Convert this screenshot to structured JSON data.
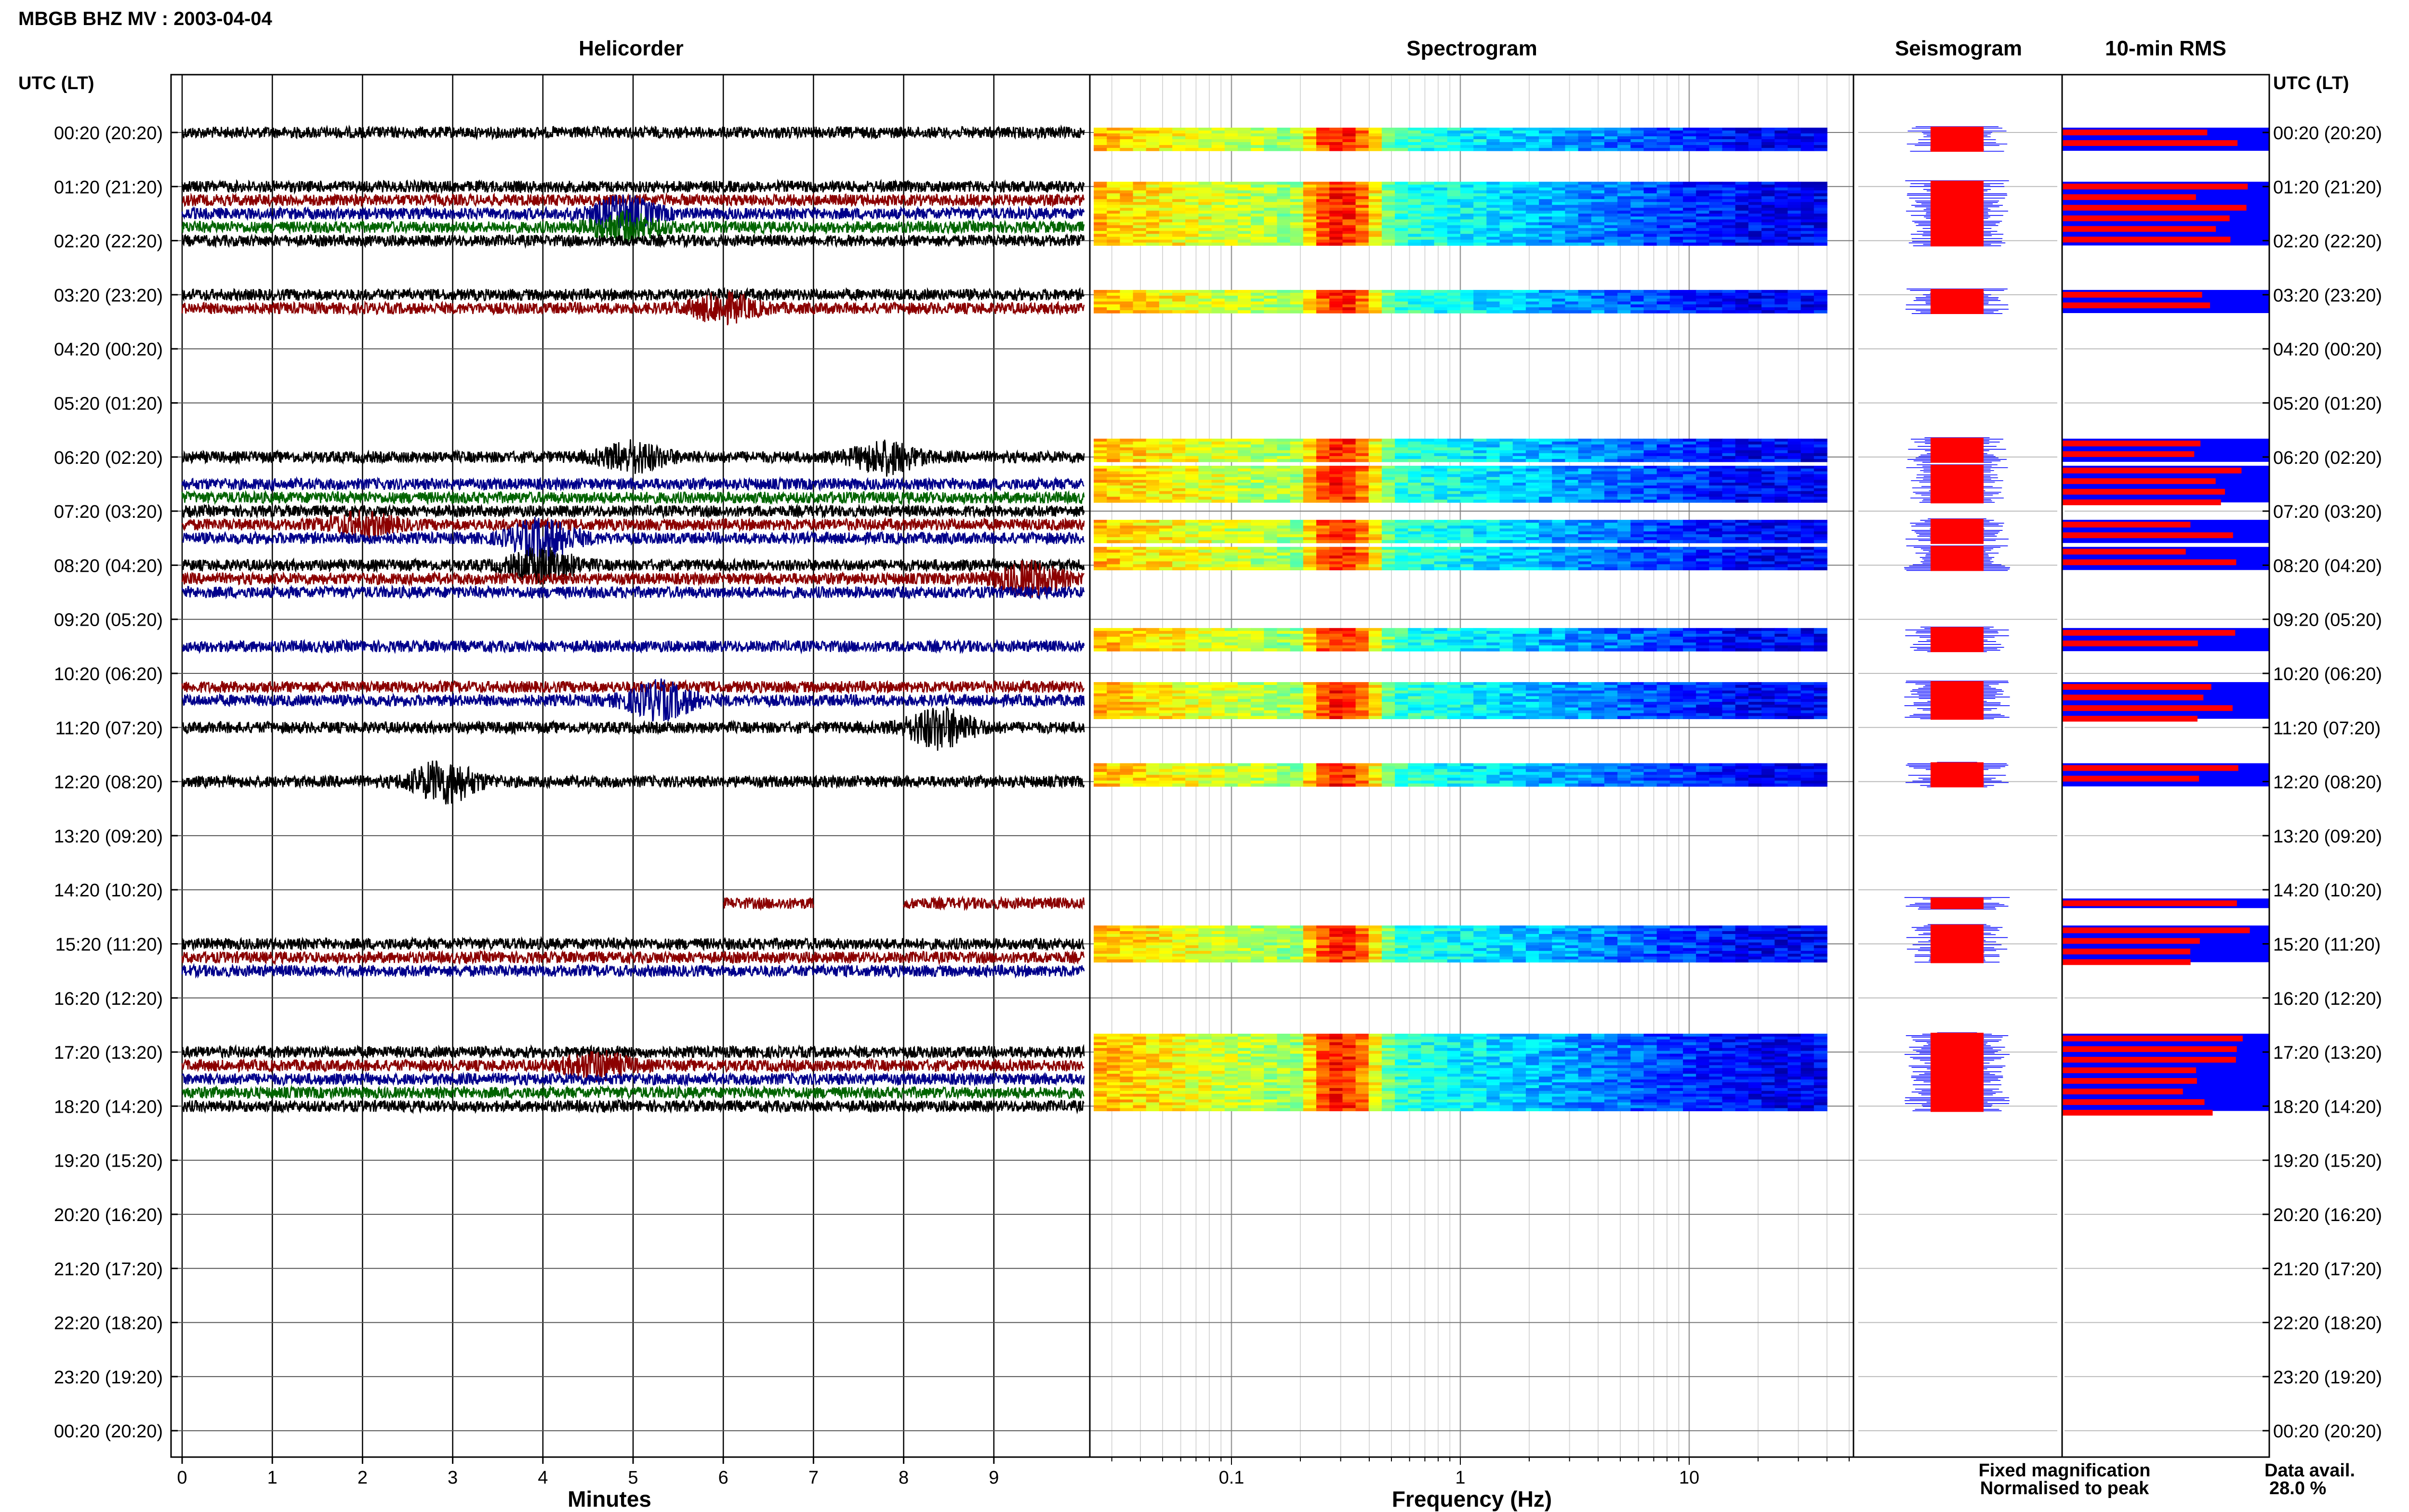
{
  "figure": {
    "title": "MBGB BHZ MV : 2003-04-04",
    "panel_titles": {
      "helicorder": "Helicorder",
      "spectrogram": "Spectrogram",
      "seismogram": "Seismogram",
      "rms": "10-min RMS"
    },
    "left_axis_label": "UTC (LT)",
    "right_axis_label": "UTC (LT)",
    "legend": {
      "fixed": "Fixed magnification",
      "normalised": "Normalised to peak"
    },
    "data_avail_label": "Data avail.",
    "data_avail_value": "28.0 %",
    "colors": {
      "trace_black": "#000000",
      "trace_red": "#8b0000",
      "trace_blue": "#00008b",
      "trace_green": "#006400",
      "fixed_blue": "#0000ff",
      "normalised_red": "#ff0000"
    }
  },
  "chart_data": {
    "type": "line",
    "row_labels": [
      "00:20 (20:20)",
      "01:20 (21:20)",
      "02:20 (22:20)",
      "03:20 (23:20)",
      "04:20 (00:20)",
      "05:20 (01:20)",
      "06:20 (02:20)",
      "07:20 (03:20)",
      "08:20 (04:20)",
      "09:20 (05:20)",
      "10:20 (06:20)",
      "11:20 (07:20)",
      "12:20 (08:20)",
      "13:20 (09:20)",
      "14:20 (10:20)",
      "15:20 (11:20)",
      "16:20 (12:20)",
      "17:20 (13:20)",
      "18:20 (14:20)",
      "19:20 (15:20)",
      "20:20 (16:20)",
      "21:20 (17:20)",
      "22:20 (18:20)",
      "23:20 (19:20)",
      "00:20 (20:20)"
    ],
    "helicorder": {
      "xlabel": "Minutes",
      "xticks": [
        "0",
        "1",
        "2",
        "3",
        "4",
        "5",
        "6",
        "7",
        "8",
        "9"
      ],
      "xlim": [
        0,
        10
      ],
      "trace_hours": [
        0,
        1,
        1.25,
        1.5,
        1.75,
        2,
        3,
        3.25,
        6,
        6.5,
        6.75,
        7,
        7.25,
        7.5,
        8,
        8.25,
        8.5,
        9.5,
        10.25,
        10.5,
        11,
        12,
        14.25,
        15,
        15.25,
        15.5,
        17,
        17.25,
        17.5,
        17.75,
        18
      ],
      "events": [
        {
          "hour": 1.5,
          "minute": 4.9,
          "amp": 2.5
        },
        {
          "hour": 1.75,
          "minute": 4.9,
          "amp": 2
        },
        {
          "hour": 3.25,
          "minute": 6,
          "amp": 2
        },
        {
          "hour": 6,
          "minute": 5,
          "amp": 2.2
        },
        {
          "hour": 6,
          "minute": 7.8,
          "amp": 2.4
        },
        {
          "hour": 7.25,
          "minute": 2,
          "amp": 1.6
        },
        {
          "hour": 7.5,
          "minute": 4,
          "amp": 3
        },
        {
          "hour": 8,
          "minute": 4,
          "amp": 2.5
        },
        {
          "hour": 8.25,
          "minute": 9.4,
          "amp": 2.5
        },
        {
          "hour": 10.5,
          "minute": 5.3,
          "amp": 2.8
        },
        {
          "hour": 11,
          "minute": 8.4,
          "amp": 3.2
        },
        {
          "hour": 12,
          "minute": 2.9,
          "amp": 3.2
        },
        {
          "hour": 17.25,
          "minute": 4.6,
          "amp": 2
        }
      ],
      "partial_traces": [
        {
          "hour": 14.25,
          "from": 6,
          "to": 7
        },
        {
          "hour": 14.25,
          "from": 8,
          "to": 10
        }
      ]
    },
    "spectrogram": {
      "xlabel": "Frequency (Hz)",
      "xscale": "log",
      "xlim": [
        0.025,
        50
      ],
      "xticks": [
        0.1,
        1,
        10
      ],
      "xtick_labels": [
        "0.1",
        "1",
        "10"
      ],
      "fmax": 40,
      "blocks": [
        [
          0,
          0.25
        ],
        [
          1,
          2
        ],
        [
          3,
          3.25
        ],
        [
          5.75,
          6
        ],
        [
          6.25,
          6.75
        ],
        [
          7.25,
          7.5
        ],
        [
          7.75,
          8
        ],
        [
          9.25,
          9.5
        ],
        [
          10.25,
          10.75
        ],
        [
          11.75,
          12
        ],
        [
          14.75,
          15.25
        ],
        [
          16.75,
          18
        ]
      ]
    },
    "seismogram": {
      "blocks": [
        [
          0,
          0.25
        ],
        [
          1,
          2
        ],
        [
          3,
          3.25
        ],
        [
          5.75,
          6
        ],
        [
          6.25,
          6.75
        ],
        [
          7.25,
          7.5
        ],
        [
          7.75,
          8
        ],
        [
          9.25,
          9.5
        ],
        [
          10.25,
          10.75
        ],
        [
          11.75,
          12
        ],
        [
          14.25,
          14.25
        ],
        [
          14.75,
          15.25
        ],
        [
          16.75,
          18
        ]
      ]
    },
    "rms": {
      "blocks": [
        [
          0,
          0.25
        ],
        [
          1,
          2
        ],
        [
          3,
          3.25
        ],
        [
          5.75,
          6
        ],
        [
          6.25,
          6.75
        ],
        [
          7.25,
          7.5
        ],
        [
          7.75,
          8
        ],
        [
          9.25,
          9.5
        ],
        [
          10.25,
          10.75
        ],
        [
          11.75,
          12
        ],
        [
          14.25,
          14.25
        ],
        [
          14.75,
          15.25
        ],
        [
          16.75,
          18
        ]
      ],
      "fixed_level": 1,
      "normalised_level": 0.7
    }
  }
}
